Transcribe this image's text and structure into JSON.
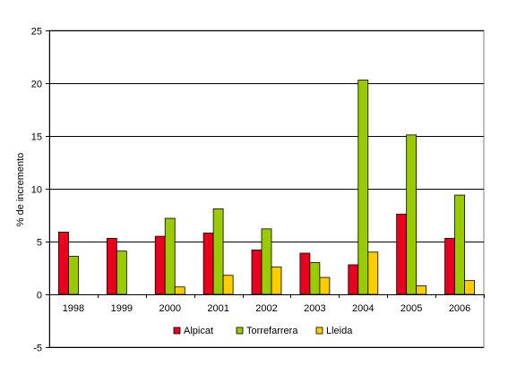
{
  "chart_data": {
    "type": "bar",
    "title": "",
    "xlabel": "",
    "ylabel": "% de incremento",
    "ylim": [
      -5,
      25
    ],
    "yticks": [
      -5,
      0,
      5,
      10,
      15,
      20,
      25
    ],
    "grid": true,
    "legend_position": "bottom",
    "categories": [
      "1998",
      "1999",
      "2000",
      "2001",
      "2002",
      "2003",
      "2004",
      "2005",
      "2006"
    ],
    "series": [
      {
        "name": "Alpicat",
        "color": "#e8001c",
        "values": [
          5.9,
          5.3,
          5.5,
          5.8,
          4.2,
          3.9,
          2.8,
          7.6,
          5.3
        ]
      },
      {
        "name": "Torrefarrera",
        "color": "#99cc00",
        "values": [
          3.6,
          4.1,
          7.2,
          8.1,
          6.2,
          3.0,
          20.3,
          15.1,
          9.4
        ]
      },
      {
        "name": "Lleida",
        "color": "#ffcc00",
        "values": [
          null,
          null,
          0.7,
          1.8,
          2.6,
          1.6,
          4.0,
          0.8,
          1.3
        ]
      }
    ]
  }
}
